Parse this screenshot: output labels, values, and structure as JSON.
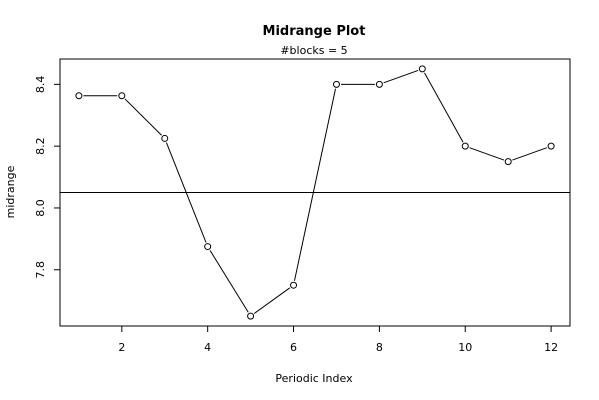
{
  "chart_data": {
    "type": "line",
    "title": "Midrange Plot",
    "subtitle": "#blocks =  5",
    "xlabel": "Periodic Index",
    "ylabel": "midrange",
    "x": [
      1,
      2,
      3,
      4,
      5,
      6,
      7,
      8,
      9,
      10,
      11,
      12
    ],
    "series": [
      {
        "values": [
          8.363,
          8.363,
          8.225,
          7.875,
          7.65,
          7.75,
          8.4,
          8.4,
          8.45,
          8.2,
          8.15,
          8.2
        ]
      }
    ],
    "reference_line": 8.05,
    "xlim": [
      0.56,
      12.44
    ],
    "ylim": [
      7.618,
      8.482
    ],
    "xticks": [
      2,
      4,
      6,
      8,
      10,
      12
    ],
    "yticks": [
      7.8,
      8.0,
      8.2,
      8.4
    ],
    "grid": false,
    "marker": "open-circle",
    "line_color": "#000000"
  }
}
